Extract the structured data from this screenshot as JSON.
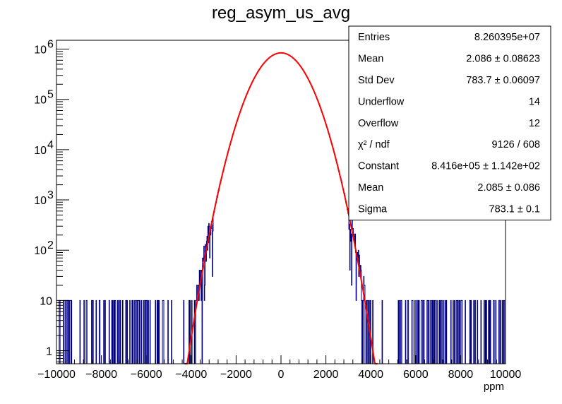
{
  "chart_data": {
    "type": "histogram",
    "title": "reg_asym_us_avg",
    "xlabel": "ppm",
    "ylabel": "",
    "xlim": [
      -10000,
      10000
    ],
    "ylim": [
      0.55,
      1500000
    ],
    "yscale": "log",
    "grid": false,
    "x_ticks": [
      -10000,
      -8000,
      -6000,
      -4000,
      -2000,
      0,
      2000,
      4000,
      6000,
      8000,
      10000
    ],
    "x_tick_labels": [
      "−10000",
      "−8000",
      "−6000",
      "−4000",
      "−2000",
      "0",
      "2000",
      "4000",
      "6000",
      "8000",
      "10000"
    ],
    "y_ticks": [
      1,
      10,
      100,
      1000,
      10000,
      100000,
      1000000
    ],
    "y_tick_labels": [
      {
        "base": "1",
        "exp": ""
      },
      {
        "base": "10",
        "exp": ""
      },
      {
        "base": "10",
        "exp": "2"
      },
      {
        "base": "10",
        "exp": "3"
      },
      {
        "base": "10",
        "exp": "4"
      },
      {
        "base": "10",
        "exp": "5"
      },
      {
        "base": "10",
        "exp": "6"
      }
    ],
    "series": [
      {
        "kind": "histogram",
        "color": "#000080",
        "bins": 1000,
        "entries": 82603950,
        "mean": 2.086,
        "std_dev": 783.7
      },
      {
        "kind": "gaussian-fit",
        "color": "#ff0000",
        "constant": 841600,
        "mean": 2.085,
        "sigma": 783.1,
        "fit_range": [
          -4300,
          4300
        ]
      }
    ],
    "stats_box": {
      "placement": "top-right",
      "rows": [
        {
          "label": "Entries",
          "value": "8.260395e+07"
        },
        {
          "label": "Mean",
          "value": "2.086 ± 0.08623"
        },
        {
          "label": "Std Dev",
          "value": "783.7 ± 0.06097"
        },
        {
          "label": "Underflow",
          "value": "14"
        },
        {
          "label": "Overflow",
          "value": "12"
        },
        {
          "label": "χ² / ndf",
          "value": "9126 / 608"
        },
        {
          "label": "Constant",
          "value": "8.416e+05 ± 1.142e+02"
        },
        {
          "label": "Mean",
          "value": "2.085 ± 0.086"
        },
        {
          "label": "Sigma",
          "value": "783.1 ± 0.1"
        }
      ]
    }
  }
}
